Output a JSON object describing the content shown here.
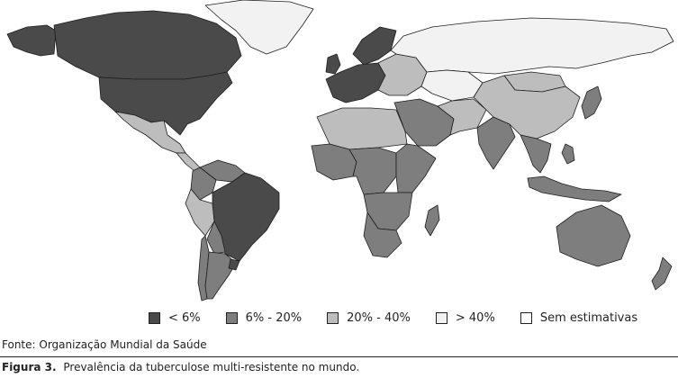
{
  "figure": {
    "label": "Figura 3.",
    "caption": "Prevalência da tuberculose multi-resistente no mundo.",
    "source": "Fonte: Organização Mundial da Saúde"
  },
  "colors": {
    "very_dark": "#4a4a4a",
    "dark": "#7e7e7e",
    "light": "#bdbdbd",
    "very_light": "#f2f2f2",
    "none": "#ffffff",
    "border": "#1e1e1e"
  },
  "legend": [
    {
      "label": "< 6%",
      "color_key": "very_dark"
    },
    {
      "label": "6% - 20%",
      "color_key": "dark"
    },
    {
      "label": "20% - 40%",
      "color_key": "light"
    },
    {
      "label": "> 40%",
      "color_key": "very_light"
    },
    {
      "label": "Sem estimativas",
      "color_key": "none"
    }
  ],
  "regions": [
    {
      "name": "canada",
      "category": "very_dark"
    },
    {
      "name": "usa",
      "category": "very_dark"
    },
    {
      "name": "alaska",
      "category": "very_dark"
    },
    {
      "name": "greenland",
      "category": "very_light"
    },
    {
      "name": "mexico",
      "category": "light"
    },
    {
      "name": "central-america",
      "category": "light"
    },
    {
      "name": "brazil",
      "category": "very_dark"
    },
    {
      "name": "venezuela",
      "category": "dark"
    },
    {
      "name": "colombia",
      "category": "dark"
    },
    {
      "name": "peru",
      "category": "light"
    },
    {
      "name": "bolivia",
      "category": "dark"
    },
    {
      "name": "chile",
      "category": "dark"
    },
    {
      "name": "argentina",
      "category": "dark"
    },
    {
      "name": "uruguay",
      "category": "very_dark"
    },
    {
      "name": "western-europe",
      "category": "very_dark"
    },
    {
      "name": "eastern-europe",
      "category": "light"
    },
    {
      "name": "scandinavia",
      "category": "very_dark"
    },
    {
      "name": "uk",
      "category": "very_dark"
    },
    {
      "name": "russia",
      "category": "very_light"
    },
    {
      "name": "kazakhstan",
      "category": "very_light"
    },
    {
      "name": "north-africa",
      "category": "light"
    },
    {
      "name": "west-africa",
      "category": "dark"
    },
    {
      "name": "central-africa",
      "category": "dark"
    },
    {
      "name": "east-africa",
      "category": "dark"
    },
    {
      "name": "southern-africa",
      "category": "dark"
    },
    {
      "name": "south-africa",
      "category": "dark"
    },
    {
      "name": "madagascar",
      "category": "dark"
    },
    {
      "name": "middle-east",
      "category": "dark"
    },
    {
      "name": "iran",
      "category": "light"
    },
    {
      "name": "india",
      "category": "dark"
    },
    {
      "name": "china",
      "category": "light"
    },
    {
      "name": "mongolia",
      "category": "light"
    },
    {
      "name": "southeast-asia",
      "category": "dark"
    },
    {
      "name": "indonesia",
      "category": "dark"
    },
    {
      "name": "japan",
      "category": "dark"
    },
    {
      "name": "philippines",
      "category": "dark"
    },
    {
      "name": "australia",
      "category": "dark"
    },
    {
      "name": "new-zealand",
      "category": "dark"
    }
  ]
}
